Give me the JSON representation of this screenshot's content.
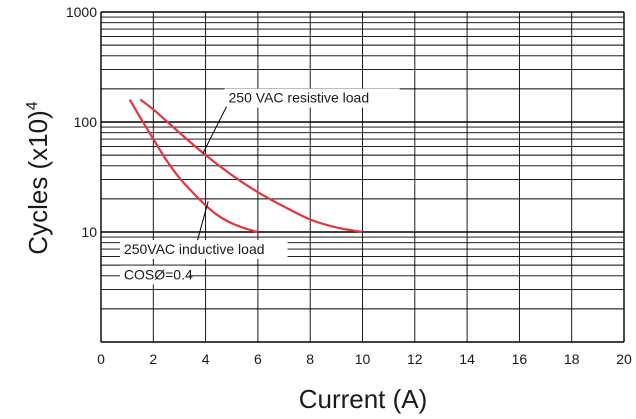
{
  "chart_data": {
    "type": "line",
    "xlabel": "Current (A)",
    "ylabel": "Cycles (x10)",
    "ylabel_superscript": "4",
    "xlim": [
      0,
      20
    ],
    "ylim": [
      1,
      1000
    ],
    "y_scale": "log",
    "grid": true,
    "x_ticks": [
      "0",
      "2",
      "4",
      "6",
      "8",
      "10",
      "12",
      "14",
      "16",
      "18",
      "20"
    ],
    "y_ticks": [
      "10",
      "100",
      "1000"
    ],
    "series": [
      {
        "key": "resistive",
        "x": [
          1.5,
          2,
          3,
          4,
          5,
          6,
          7,
          8,
          9,
          10
        ],
        "y": [
          160,
          130,
          80,
          50,
          33,
          23,
          17,
          13,
          11,
          10
        ],
        "color": "#e8333a"
      },
      {
        "key": "inductive",
        "x": [
          1.1,
          1.5,
          2,
          2.5,
          3,
          3.5,
          4,
          4.5,
          5,
          5.5,
          6
        ],
        "y": [
          160,
          110,
          70,
          45,
          31,
          23,
          17.5,
          14,
          12,
          10.8,
          10
        ],
        "color": "#e8333a"
      }
    ],
    "annotations": [
      {
        "text": "250 VAC resistive load",
        "x": 4.8,
        "y": 150,
        "pointer_to": [
          3.9,
          52
        ]
      },
      {
        "text": "250VAC inductive load",
        "x": 0.8,
        "y": 6.3,
        "pointer_to": [
          4.1,
          19
        ]
      },
      {
        "text": "COSØ=0.4",
        "x": 0.8,
        "y": 3.7
      }
    ]
  }
}
